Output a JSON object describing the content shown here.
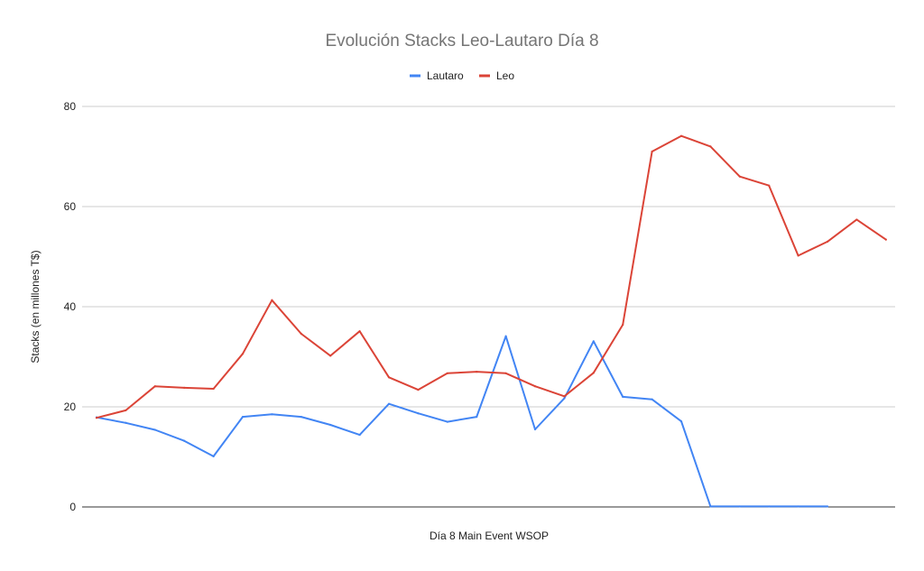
{
  "chart_data": {
    "type": "line",
    "title": "Evolución Stacks Leo-Lautaro  Día 8",
    "xlabel": "Día 8 Main Event WSOP",
    "ylabel": "Stacks (en millones T$)",
    "ylim": [
      0,
      80
    ],
    "yticks": [
      0,
      20,
      40,
      60,
      80
    ],
    "x_count": 28,
    "grid": true,
    "legend_position": "top-center",
    "series": [
      {
        "name": "Lautaro",
        "color": "#4285f4",
        "values": [
          17.9,
          16.8,
          15.4,
          13.2,
          10.1,
          18.0,
          18.5,
          18.0,
          16.4,
          14.4,
          20.6,
          18.7,
          17.0,
          18.0,
          34.1,
          15.5,
          21.7,
          33.1,
          22.0,
          21.5,
          17.1,
          0.1,
          0.1,
          0.1,
          0.1,
          0.1,
          null,
          null
        ]
      },
      {
        "name": "Leo",
        "color": "#db4437",
        "values": [
          17.8,
          19.3,
          24.1,
          23.8,
          23.6,
          30.6,
          41.3,
          34.6,
          30.2,
          35.1,
          25.9,
          23.4,
          26.7,
          27.0,
          26.7,
          24.1,
          22.1,
          26.8,
          36.4,
          71.0,
          74.1,
          72.0,
          66.0,
          64.2,
          50.2,
          53.0,
          57.4,
          53.4
        ]
      }
    ]
  }
}
